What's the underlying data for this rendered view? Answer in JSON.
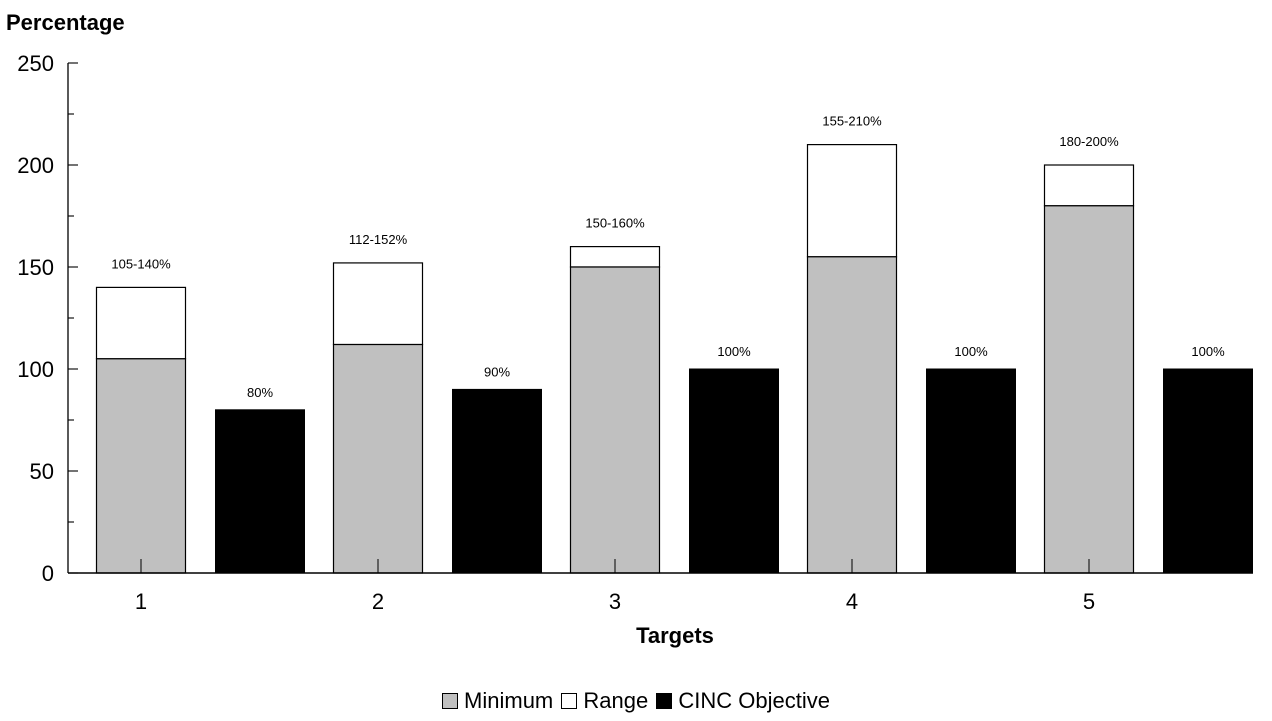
{
  "chart_data": {
    "type": "bar",
    "ylabel": "Percentage",
    "xlabel": "Targets",
    "ylim": [
      0,
      250
    ],
    "yticks": [
      "0",
      "50",
      "100",
      "150",
      "200",
      "250"
    ],
    "categories": [
      "1",
      "2",
      "3",
      "4",
      "5"
    ],
    "series": [
      {
        "name": "Minimum",
        "color": "#c0c0c0",
        "values": [
          105,
          112,
          150,
          155,
          180
        ]
      },
      {
        "name": "Range",
        "color": "#ffffff",
        "values": [
          35,
          40,
          10,
          55,
          20
        ]
      },
      {
        "name": "CINC Objective",
        "color": "#000000",
        "values": [
          80,
          90,
          100,
          100,
          100
        ]
      }
    ],
    "range_labels": [
      "105-140%",
      "112-152%",
      "150-160%",
      "155-210%",
      "180-200%"
    ],
    "objective_labels": [
      "80%",
      "90%",
      "100%",
      "100%",
      "100%"
    ],
    "legend_position": "bottom-center",
    "grid": false
  }
}
